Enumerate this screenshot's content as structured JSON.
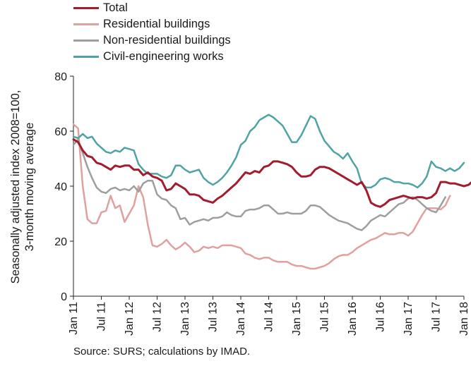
{
  "chart_data": {
    "type": "line",
    "ylabel_line1": "Seasonally adjusted index 2008=100,",
    "ylabel_line2": "3-month moving average",
    "ylim": [
      0,
      80
    ],
    "yticks": [
      0,
      20,
      40,
      60,
      80
    ],
    "xticks": [
      "Jan 11",
      "Jul 11",
      "Jan 12",
      "Jul 12",
      "Jan 13",
      "Jul 13",
      "Jan 14",
      "Jul 14",
      "Jan 15",
      "Jul 15",
      "Jan 16",
      "Jul 16",
      "Jan 17",
      "Jul 17",
      "Jan 18"
    ],
    "x_start": "Jan 11",
    "grid": false,
    "legend_position": "top-left",
    "source": "Source: SURS; calculations by IMAD.",
    "series": [
      {
        "name": "Total",
        "color": "#a31c2e",
        "values": [
          57,
          56,
          53,
          51,
          50.5,
          48.5,
          48,
          47,
          46,
          47.5,
          47,
          47.5,
          47.5,
          46,
          46,
          44,
          45,
          43.5,
          43,
          42,
          38.5,
          39,
          41,
          40,
          39,
          37,
          37,
          36.5,
          35,
          34.5,
          34,
          35.5,
          36.5,
          38,
          39.5,
          41,
          43,
          45,
          44.5,
          45.5,
          45,
          47,
          47.5,
          49,
          49,
          48.5,
          48,
          47,
          45,
          43.5,
          43.5,
          44,
          46,
          47,
          47,
          46.5,
          45.5,
          44.5,
          43.5,
          42.5,
          41.5,
          40.5,
          41.5,
          38.5,
          34,
          33,
          32.5,
          33.5,
          35,
          35.5,
          36,
          36.5,
          36,
          35.5,
          36,
          36,
          35.5,
          36,
          37.5,
          41.5,
          41.5,
          41,
          41,
          40.5,
          40,
          40.5,
          42,
          43
        ]
      },
      {
        "name": "Residential buildings",
        "color": "#e0a0a0",
        "values": [
          62.5,
          61,
          40,
          28,
          26.5,
          26.5,
          30.5,
          31,
          36.5,
          32,
          33,
          27,
          30,
          33,
          40,
          36,
          26,
          18.5,
          18,
          19,
          20.5,
          18.5,
          17,
          18,
          19.5,
          18,
          16,
          16.5,
          18,
          17.5,
          18,
          17.5,
          18.5,
          18.5,
          18.5,
          18,
          17.5,
          15.5,
          15,
          14,
          13.5,
          14,
          14,
          13,
          12.5,
          12.5,
          12.5,
          11.5,
          11,
          11,
          10.5,
          10,
          10,
          10.5,
          11,
          12,
          13.5,
          14.5,
          15,
          15,
          16,
          17.5,
          18.5,
          19.5,
          20.5,
          21,
          22,
          23,
          22.5,
          22.5,
          23,
          23,
          22,
          23.5,
          26.5,
          29.5,
          32,
          32,
          32,
          31.5,
          33,
          36.5
        ]
      },
      {
        "name": "Non-residential buildings",
        "color": "#9e9e9e",
        "values": [
          55,
          57,
          52,
          47,
          43,
          39.5,
          38,
          37.5,
          39,
          39.5,
          38.5,
          39,
          38.5,
          40,
          38,
          41,
          42,
          42,
          37,
          35.5,
          35,
          33,
          32,
          28,
          28.5,
          26,
          27,
          27.5,
          28,
          27.5,
          28.5,
          28.5,
          29,
          30.5,
          29.5,
          29,
          29,
          31,
          31.5,
          31.5,
          32,
          33,
          33,
          31.5,
          30,
          30,
          30.5,
          30,
          30,
          30,
          31,
          33,
          33,
          32.5,
          31,
          29.5,
          28.5,
          27.5,
          27,
          26.5,
          25.5,
          24.5,
          24,
          25.5,
          27.5,
          28.5,
          29.5,
          29,
          30.5,
          32,
          33.5,
          34,
          35.5,
          36,
          35,
          33.5,
          32,
          31,
          30.5,
          33,
          36
        ]
      },
      {
        "name": "Civil-engineering works",
        "color": "#4fa3a3",
        "values": [
          58,
          57.5,
          59,
          57.5,
          58,
          55.5,
          54,
          52.5,
          52,
          53,
          52.5,
          54,
          53.5,
          53,
          48,
          46,
          44.5,
          44.5,
          44.5,
          43.5,
          43,
          44,
          47.5,
          47.5,
          46,
          45,
          45.5,
          46,
          43,
          41.5,
          40.5,
          41.5,
          43,
          45,
          47.5,
          50.5,
          55,
          56.5,
          60,
          61.5,
          64,
          65,
          66,
          65,
          63.5,
          62,
          59,
          56,
          56,
          58.5,
          62,
          65.5,
          64.5,
          60,
          56.5,
          54.5,
          52.5,
          51.5,
          50,
          52,
          49,
          46.5,
          41,
          39.5,
          39.5,
          40.5,
          42.5,
          43,
          42.5,
          41.5,
          41.5,
          41,
          41,
          40.5,
          39.5,
          41,
          43.5,
          49,
          47,
          46.5,
          45.5,
          46.5,
          45.5,
          46.5,
          48.5
        ]
      }
    ]
  }
}
